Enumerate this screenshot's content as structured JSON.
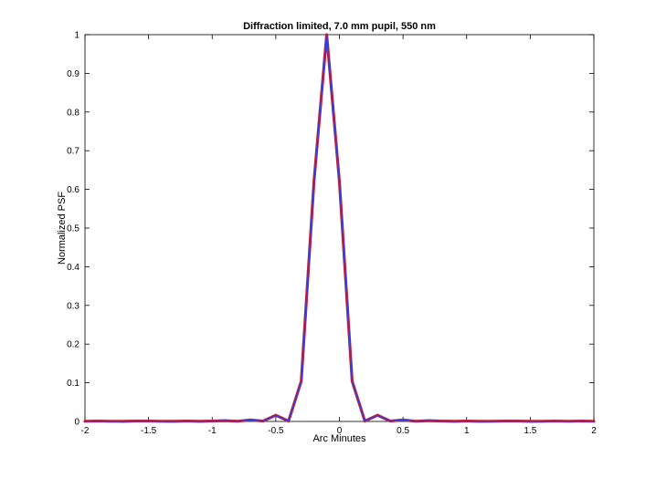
{
  "chart_data": {
    "type": "line",
    "title": "Diffraction limited, 7.0 mm pupil, 550 nm",
    "xlabel": "Arc Minutes",
    "ylabel": "Normalized PSF",
    "xlim": [
      -2,
      2
    ],
    "ylim": [
      0,
      1
    ],
    "grid": false,
    "xticks": [
      -2,
      -1.5,
      -1,
      -0.5,
      0,
      0.5,
      1,
      1.5,
      2
    ],
    "xtick_labels": [
      "-2",
      "-1.5",
      "-1",
      "-0.5",
      "0",
      "0.5",
      "1",
      "1.5",
      "2"
    ],
    "yticks": [
      0,
      0.1,
      0.2,
      0.3,
      0.4,
      0.5,
      0.6,
      0.7,
      0.8,
      0.9,
      1
    ],
    "ytick_labels": [
      "0",
      "0.1",
      "0.2",
      "0.3",
      "0.4",
      "0.5",
      "0.6",
      "0.7",
      "0.8",
      "0.9",
      "1"
    ],
    "x": [
      -2.0,
      -1.9,
      -1.8,
      -1.7,
      -1.6,
      -1.5,
      -1.4,
      -1.3,
      -1.2,
      -1.1,
      -1.0,
      -0.9,
      -0.8,
      -0.7,
      -0.6,
      -0.5,
      -0.4,
      -0.3,
      -0.2,
      -0.1,
      0.0,
      0.1,
      0.2,
      0.3,
      0.4,
      0.5,
      0.6,
      0.7,
      0.8,
      0.9,
      1.0,
      1.1,
      1.2,
      1.3,
      1.4,
      1.5,
      1.6,
      1.7,
      1.8,
      1.9,
      2.0
    ],
    "series": [
      {
        "color": "#d42020",
        "values": [
          0.0005,
          0.001,
          0.0005,
          0.0003,
          0.001,
          0.001,
          0.0005,
          0.0003,
          0.001,
          0.0003,
          0.001,
          0.002,
          0.0005,
          0.004,
          0.001,
          0.016,
          0.001,
          0.104,
          0.62,
          1.0,
          0.62,
          0.104,
          0.001,
          0.016,
          0.001,
          0.004,
          0.0005,
          0.002,
          0.001,
          0.0003,
          0.001,
          0.0003,
          0.0005,
          0.001,
          0.001,
          0.0003,
          0.0005,
          0.001,
          0.0005,
          0.001,
          0.0005
        ]
      },
      {
        "color": "#3a3adc",
        "values": [
          0.0005,
          0.001,
          0.0005,
          0.0003,
          0.001,
          0.001,
          0.0005,
          0.0003,
          0.001,
          0.0003,
          0.001,
          0.002,
          0.0005,
          0.004,
          0.001,
          0.016,
          0.001,
          0.104,
          0.62,
          1.0,
          0.62,
          0.104,
          0.001,
          0.016,
          0.001,
          0.004,
          0.0005,
          0.002,
          0.001,
          0.0003,
          0.001,
          0.0003,
          0.0005,
          0.001,
          0.001,
          0.0003,
          0.0005,
          0.001,
          0.0005,
          0.001,
          0.0005
        ]
      }
    ]
  }
}
